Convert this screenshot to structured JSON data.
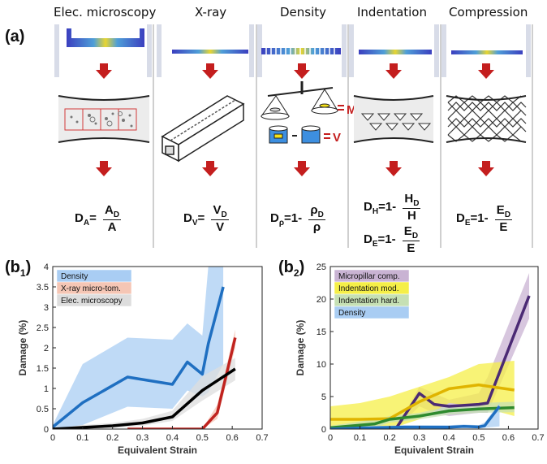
{
  "panel_a": {
    "label": "(a)",
    "columns": [
      {
        "title": "Elec. microscopy"
      },
      {
        "title": "X-ray"
      },
      {
        "title": "Density"
      },
      {
        "title": "Indentation"
      },
      {
        "title": "Compression"
      }
    ],
    "density_labels": {
      "mass": "M",
      "volume": "V"
    },
    "formulas": {
      "area": {
        "lhs": "D",
        "lhs_sub": "A",
        "eq": "=",
        "num": "A",
        "num_sub": "D",
        "den": "A"
      },
      "xray": {
        "lhs": "D",
        "lhs_sub": "V",
        "eq": "=",
        "num": "V",
        "num_sub": "D",
        "den": "V"
      },
      "density": {
        "lhs": "D",
        "lhs_sub": "ρ",
        "eq": "=1-",
        "num": "ρ",
        "num_sub": "D",
        "den": "ρ"
      },
      "hardness": {
        "lhs": "D",
        "lhs_sub": "H",
        "eq": "=1-",
        "num": "H",
        "num_sub": "D",
        "den": "H"
      },
      "modulus": {
        "lhs": "D",
        "lhs_sub": "E",
        "eq": "=1-",
        "num": "E",
        "num_sub": "D",
        "den": "E"
      },
      "compression": {
        "lhs": "D",
        "lhs_sub": "E",
        "eq": "=1-",
        "num": "E",
        "num_sub": "D",
        "den": "E"
      }
    }
  },
  "panel_b1": {
    "label_main": "(b",
    "label_sub": "1",
    "label_close": ")"
  },
  "panel_b2": {
    "label_main": "(b",
    "label_sub": "2",
    "label_close": ")"
  },
  "chart_data": [
    {
      "type": "line",
      "xlabel": "Equivalent Strain",
      "ylabel": "Damage (%)",
      "xlim": [
        0,
        0.7
      ],
      "ylim": [
        0,
        4
      ],
      "xticks": [
        "0",
        "0.1",
        "0.2",
        "0.3",
        "0.4",
        "0.5",
        "0.6",
        "0.7"
      ],
      "yticks": [
        "0",
        "0.5",
        "1",
        "1.5",
        "2",
        "2.5",
        "3",
        "3.5",
        "4"
      ],
      "legend_placement": "top-left",
      "series": [
        {
          "name": "Density",
          "color": "#1f6fc1",
          "band_color": "#a9cdf3",
          "x": [
            0,
            0.1,
            0.25,
            0.4,
            0.45,
            0.5,
            0.52,
            0.57
          ],
          "y": [
            0.05,
            0.65,
            1.28,
            1.1,
            1.65,
            1.35,
            2.1,
            3.5
          ],
          "upper": [
            0.1,
            1.6,
            2.25,
            2.2,
            2.6,
            2.3,
            4.0,
            4.0
          ],
          "lower": [
            0.0,
            0.1,
            0.55,
            0.5,
            0.95,
            0.8,
            0.9,
            1.6
          ]
        },
        {
          "name": "X-ray micro-tom.",
          "color": "#c0231f",
          "band_color": "#f5c6b5",
          "x": [
            0.25,
            0.5,
            0.55,
            0.61
          ],
          "y": [
            0.0,
            0.0,
            0.4,
            2.25
          ],
          "upper": [
            0.0,
            0.0,
            0.6,
            2.45
          ],
          "lower": [
            0.0,
            0.0,
            0.25,
            2.0
          ]
        },
        {
          "name": "Elec. microscopy",
          "color": "#000000",
          "band_color": "#dddddd",
          "x": [
            0,
            0.1,
            0.2,
            0.3,
            0.4,
            0.5,
            0.61
          ],
          "y": [
            0.0,
            0.04,
            0.08,
            0.15,
            0.3,
            0.95,
            1.48
          ],
          "upper": [
            0.0,
            0.1,
            0.15,
            0.25,
            0.45,
            1.3,
            1.75
          ],
          "lower": [
            0.0,
            0.0,
            0.03,
            0.08,
            0.2,
            0.7,
            1.2
          ]
        }
      ]
    },
    {
      "type": "line",
      "xlabel": "Equivalent Strain",
      "ylabel": "Damage (%)",
      "xlim": [
        0,
        0.7
      ],
      "ylim": [
        0,
        25
      ],
      "xticks": [
        "0",
        "0.1",
        "0.2",
        "0.3",
        "0.4",
        "0.5",
        "0.6",
        "0.7"
      ],
      "yticks": [
        "0",
        "5",
        "10",
        "15",
        "20",
        "25"
      ],
      "legend_placement": "top-left",
      "series": [
        {
          "name": "Micropillar comp.",
          "color": "#4b2a74",
          "band_color": "#c9b3d3",
          "x": [
            0.22,
            0.3,
            0.35,
            0.4,
            0.5,
            0.53,
            0.67
          ],
          "y": [
            0.0,
            5.5,
            3.8,
            3.5,
            3.8,
            4.0,
            20.5
          ],
          "upper": [
            0.0,
            6.5,
            5.5,
            4.5,
            5.5,
            8.0,
            24.0
          ],
          "lower": [
            0.0,
            3.5,
            2.5,
            2.0,
            2.5,
            2.5,
            17.0
          ]
        },
        {
          "name": "Indentation mod.",
          "color": "#e0b400",
          "band_color": "#f5ef48",
          "x": [
            0,
            0.1,
            0.2,
            0.3,
            0.4,
            0.5,
            0.62
          ],
          "y": [
            1.5,
            1.5,
            1.6,
            4.2,
            6.2,
            6.8,
            6.0
          ],
          "upper": [
            3.5,
            4.0,
            5.0,
            6.5,
            8.0,
            10.0,
            10.5
          ],
          "lower": [
            0.0,
            0.0,
            0.0,
            1.5,
            4.0,
            3.5,
            2.0
          ]
        },
        {
          "name": "Indentation hard.",
          "color": "#2e8a2e",
          "band_color": "#c6e0b4",
          "x": [
            0,
            0.15,
            0.2,
            0.3,
            0.4,
            0.5,
            0.62
          ],
          "y": [
            0.2,
            0.8,
            1.5,
            2.0,
            2.8,
            3.1,
            3.3
          ],
          "upper": [
            0.5,
            1.5,
            2.0,
            2.5,
            3.5,
            4.0,
            4.2
          ],
          "lower": [
            0.0,
            0.2,
            1.0,
            1.5,
            2.2,
            2.5,
            2.6
          ]
        },
        {
          "name": "Density",
          "color": "#1f6fc1",
          "band_color": "#a9cdf3",
          "x": [
            0,
            0.1,
            0.25,
            0.4,
            0.45,
            0.5,
            0.52,
            0.57
          ],
          "y": [
            0.0,
            0.15,
            0.3,
            0.28,
            0.4,
            0.33,
            0.5,
            3.5
          ],
          "upper": [
            0.0,
            0.4,
            0.6,
            0.6,
            0.7,
            0.6,
            1.0,
            4.0
          ],
          "lower": [
            0.0,
            0.0,
            0.1,
            0.1,
            0.2,
            0.15,
            0.2,
            0.4
          ]
        }
      ]
    }
  ]
}
